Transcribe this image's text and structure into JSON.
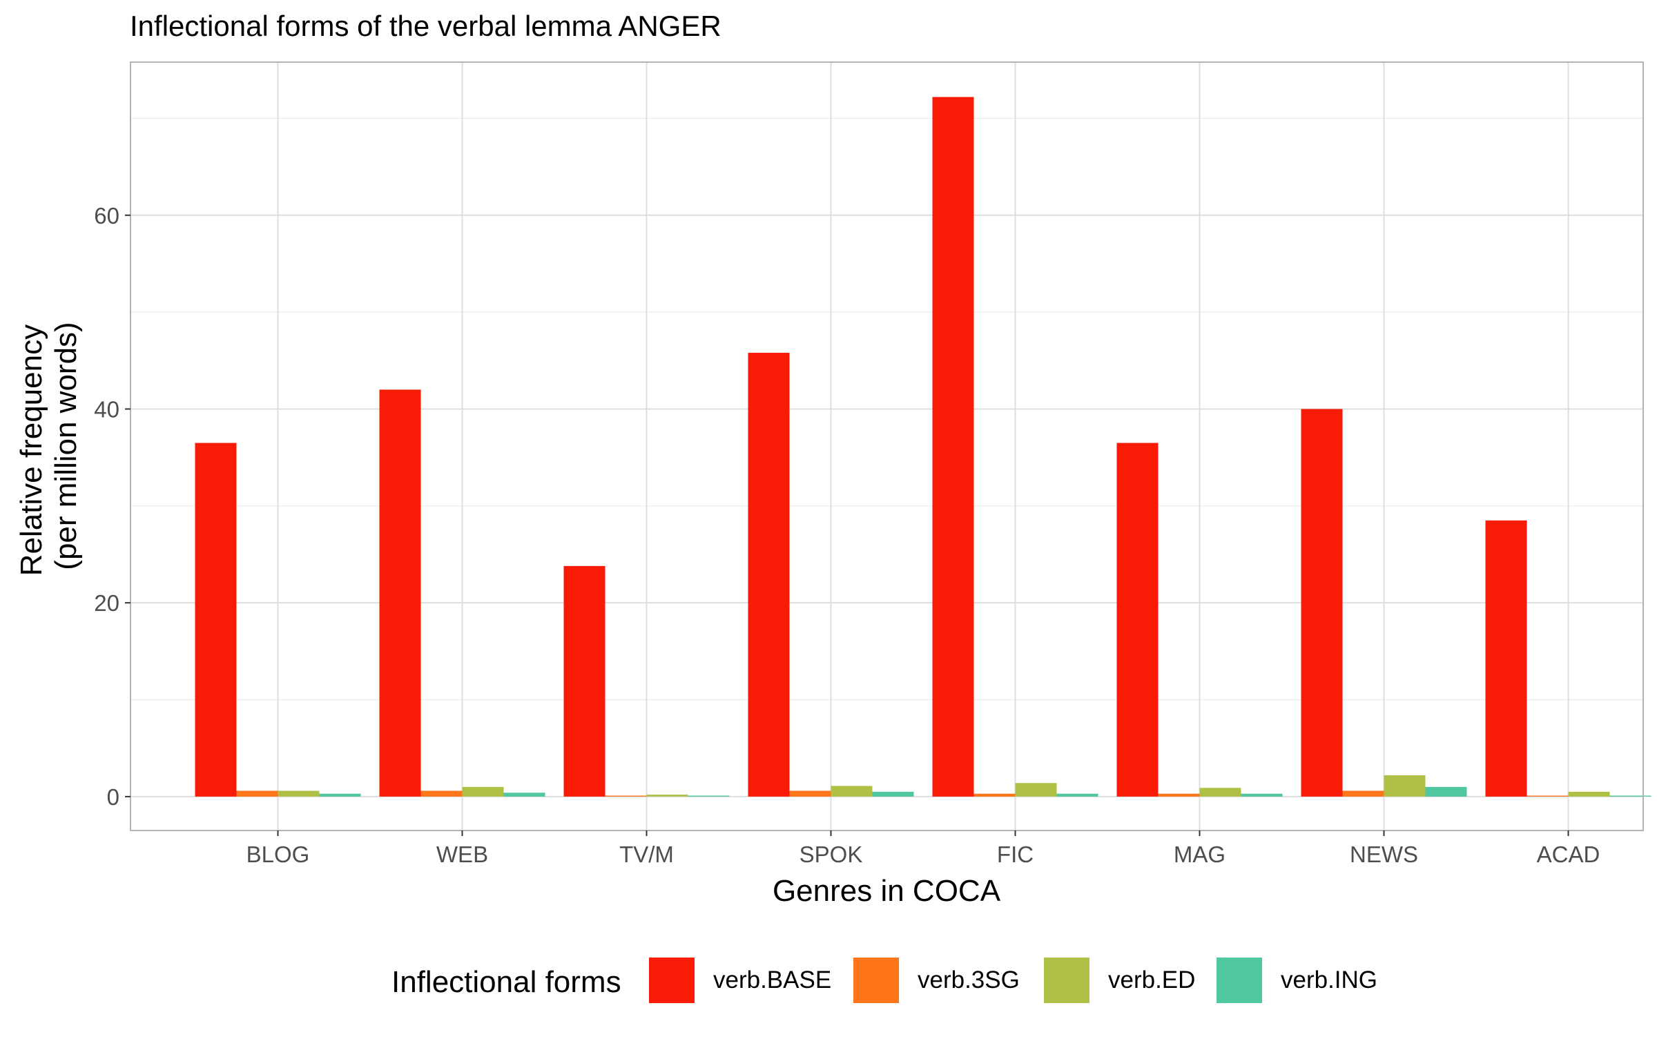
{
  "chart_data": {
    "type": "bar",
    "title": "Inflectional forms of the verbal lemma ANGER",
    "xlabel": "Genres in COCA",
    "ylabel_line1": "Relative frequency",
    "ylabel_line2": "(per million words)",
    "categories": [
      "BLOG",
      "WEB",
      "TV/M",
      "SPOK",
      "FIC",
      "MAG",
      "NEWS",
      "ACAD"
    ],
    "series": [
      {
        "name": "verb.BASE",
        "color": "#F81B06",
        "values": [
          36.5,
          42.0,
          23.8,
          45.8,
          72.2,
          36.5,
          40.0,
          28.5
        ]
      },
      {
        "name": "verb.3SG",
        "color": "#FE7619",
        "values": [
          0.6,
          0.6,
          0.1,
          0.6,
          0.3,
          0.3,
          0.6,
          0.1
        ]
      },
      {
        "name": "verb.ED",
        "color": "#AFC045",
        "values": [
          0.6,
          1.0,
          0.2,
          1.1,
          1.4,
          0.9,
          2.2,
          0.5
        ]
      },
      {
        "name": "verb.ING",
        "color": "#50C6A1",
        "values": [
          0.3,
          0.4,
          0.1,
          0.5,
          0.3,
          0.3,
          1.0,
          0.1
        ]
      }
    ],
    "ylim": [
      -3.5,
      75.8
    ],
    "yticks": [
      0,
      20,
      40,
      60
    ],
    "grid": true,
    "legend_title": "Inflectional forms",
    "legend_position": "bottom"
  }
}
